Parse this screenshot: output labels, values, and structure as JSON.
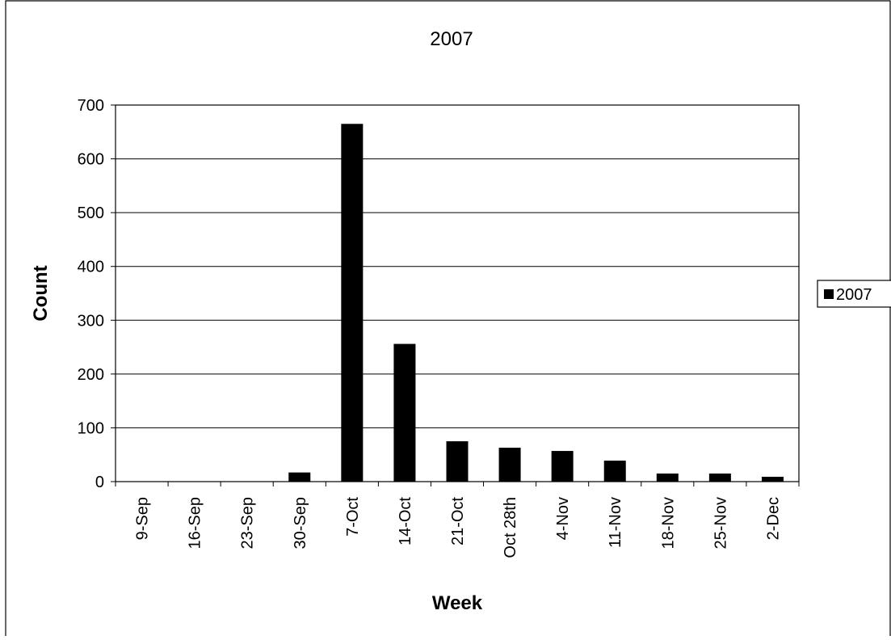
{
  "chart_data": {
    "type": "bar",
    "title": "2007",
    "xlabel": "Week",
    "ylabel": "Count",
    "categories": [
      "9-Sep",
      "16-Sep",
      "23-Sep",
      "30-Sep",
      "7-Oct",
      "14-Oct",
      "21-Oct",
      "Oct 28th",
      "4-Nov",
      "11-Nov",
      "18-Nov",
      "25-Nov",
      "2-Dec"
    ],
    "series": [
      {
        "name": "2007",
        "color": "#000000",
        "values": [
          0,
          0,
          0,
          17,
          665,
          256,
          75,
          63,
          57,
          39,
          15,
          15,
          9
        ]
      }
    ],
    "ylim": [
      0,
      700
    ],
    "yticks": [
      0,
      100,
      200,
      300,
      400,
      500,
      600,
      700
    ],
    "grid": true,
    "legend_position": "right"
  }
}
